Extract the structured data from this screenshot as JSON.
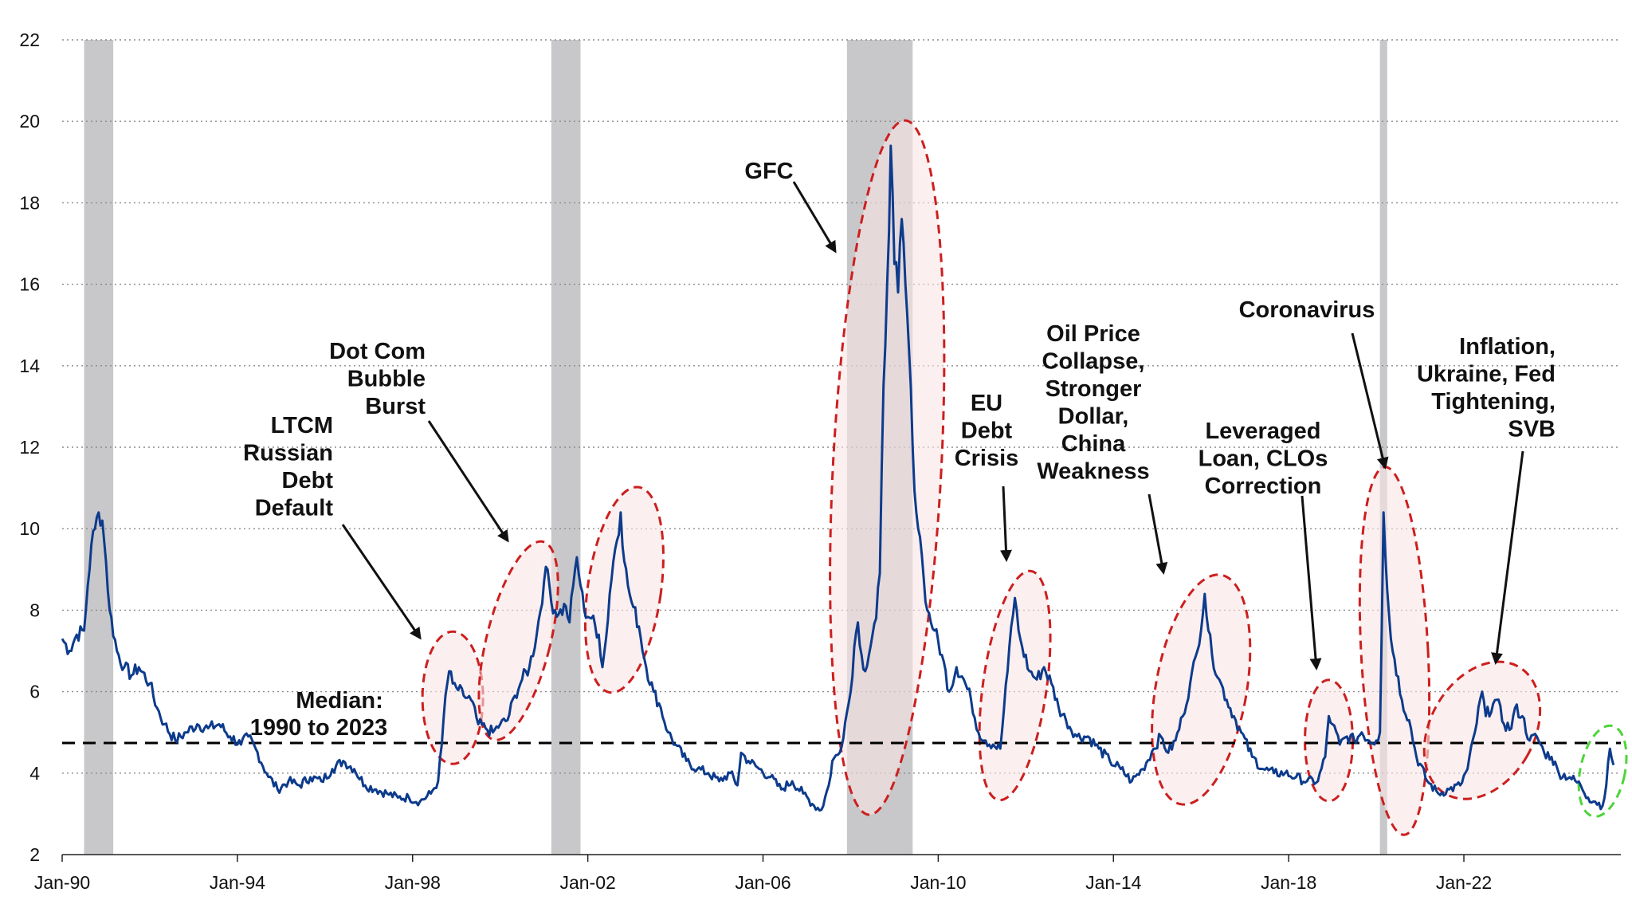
{
  "chart_data": {
    "type": "line",
    "title": "",
    "xlabel": "",
    "ylabel": "",
    "ylim": [
      2,
      22
    ],
    "xlim": [
      "1990-01",
      "2025-08"
    ],
    "grid": "horizontal dotted",
    "legend": "none",
    "y_ticks": [
      "2",
      "4",
      "6",
      "8",
      "10",
      "12",
      "14",
      "16",
      "18",
      "20",
      "22"
    ],
    "x_ticks": [
      "Jan-90",
      "Jan-94",
      "Jan-98",
      "Jan-02",
      "Jan-06",
      "Jan-10",
      "Jan-14",
      "Jan-18",
      "Jan-22"
    ],
    "colors": {
      "series": "#0d3b8c",
      "recession": "#c8c8ca",
      "median": "#000000",
      "highlight": "#cc1f1f",
      "highlight_fill": "#f9e4e4",
      "current": "#4ed43a"
    },
    "recessions": [
      {
        "start": "1990-07",
        "end": "1991-03"
      },
      {
        "start": "2001-03",
        "end": "2001-11"
      },
      {
        "start": "2007-12",
        "end": "2009-06"
      },
      {
        "start": "2020-02",
        "end": "2020-04"
      }
    ],
    "median": {
      "value": 4.74,
      "label_line1": "Median:",
      "label_line2": "1990 to 2023"
    },
    "series": [
      {
        "points": [
          [
            "1990-01",
            7.3
          ],
          [
            "1990-03",
            7.0
          ],
          [
            "1990-05",
            7.4
          ],
          [
            "1990-07",
            7.5
          ],
          [
            "1990-08",
            8.6
          ],
          [
            "1990-09",
            9.6
          ],
          [
            "1990-10",
            10.0
          ],
          [
            "1990-11",
            10.4
          ],
          [
            "1990-12",
            10.2
          ],
          [
            "1991-01",
            9.2
          ],
          [
            "1991-02",
            8.0
          ],
          [
            "1991-04",
            7.0
          ],
          [
            "1991-06",
            6.6
          ],
          [
            "1991-08",
            6.4
          ],
          [
            "1991-10",
            6.6
          ],
          [
            "1992-01",
            6.2
          ],
          [
            "1992-03",
            5.6
          ],
          [
            "1992-05",
            5.2
          ],
          [
            "1992-08",
            4.8
          ],
          [
            "1992-11",
            5.0
          ],
          [
            "1993-02",
            5.2
          ],
          [
            "1993-05",
            5.1
          ],
          [
            "1993-08",
            5.2
          ],
          [
            "1993-11",
            4.9
          ],
          [
            "1994-02",
            4.7
          ],
          [
            "1994-04",
            4.9
          ],
          [
            "1994-06",
            4.6
          ],
          [
            "1994-09",
            4.0
          ],
          [
            "1994-12",
            3.6
          ],
          [
            "1995-03",
            3.8
          ],
          [
            "1995-06",
            3.7
          ],
          [
            "1995-09",
            3.9
          ],
          [
            "1995-12",
            3.8
          ],
          [
            "1996-03",
            4.1
          ],
          [
            "1996-06",
            4.3
          ],
          [
            "1996-09",
            4.1
          ],
          [
            "1996-12",
            3.7
          ],
          [
            "1997-03",
            3.6
          ],
          [
            "1997-06",
            3.5
          ],
          [
            "1997-09",
            3.4
          ],
          [
            "1997-12",
            3.4
          ],
          [
            "1998-03",
            3.3
          ],
          [
            "1998-06",
            3.5
          ],
          [
            "1998-08",
            3.8
          ],
          [
            "1998-09",
            4.7
          ],
          [
            "1998-10",
            5.9
          ],
          [
            "1998-11",
            6.5
          ],
          [
            "1998-12",
            6.2
          ],
          [
            "1999-01",
            6.1
          ],
          [
            "1999-03",
            5.9
          ],
          [
            "1999-05",
            5.8
          ],
          [
            "1999-07",
            5.2
          ],
          [
            "1999-09",
            5.1
          ],
          [
            "1999-11",
            5.0
          ],
          [
            "2000-01",
            5.2
          ],
          [
            "2000-03",
            5.3
          ],
          [
            "2000-05",
            5.9
          ],
          [
            "2000-07",
            6.3
          ],
          [
            "2000-09",
            6.6
          ],
          [
            "2000-11",
            7.4
          ],
          [
            "2001-01",
            8.7
          ],
          [
            "2001-02",
            9.0
          ],
          [
            "2001-03",
            8.2
          ],
          [
            "2001-05",
            7.9
          ],
          [
            "2001-07",
            8.1
          ],
          [
            "2001-08",
            7.7
          ],
          [
            "2001-09",
            8.6
          ],
          [
            "2001-10",
            9.3
          ],
          [
            "2001-11",
            8.6
          ],
          [
            "2001-12",
            8.0
          ],
          [
            "2002-02",
            7.8
          ],
          [
            "2002-04",
            7.4
          ],
          [
            "2002-05",
            6.6
          ],
          [
            "2002-06",
            7.3
          ],
          [
            "2002-07",
            8.4
          ],
          [
            "2002-08",
            9.2
          ],
          [
            "2002-10",
            10.4
          ],
          [
            "2002-11",
            9.2
          ],
          [
            "2002-12",
            8.6
          ],
          [
            "2003-01",
            8.2
          ],
          [
            "2003-03",
            7.6
          ],
          [
            "2003-05",
            6.6
          ],
          [
            "2003-07",
            6.0
          ],
          [
            "2003-09",
            5.6
          ],
          [
            "2003-11",
            5.0
          ],
          [
            "2004-01",
            4.7
          ],
          [
            "2004-04",
            4.3
          ],
          [
            "2004-07",
            4.1
          ],
          [
            "2004-10",
            4.0
          ],
          [
            "2005-01",
            3.8
          ],
          [
            "2005-04",
            4.0
          ],
          [
            "2005-06",
            3.7
          ],
          [
            "2005-07",
            4.5
          ],
          [
            "2005-09",
            4.3
          ],
          [
            "2005-12",
            4.1
          ],
          [
            "2006-03",
            3.9
          ],
          [
            "2006-06",
            3.6
          ],
          [
            "2006-09",
            3.8
          ],
          [
            "2006-12",
            3.5
          ],
          [
            "2007-03",
            3.2
          ],
          [
            "2007-05",
            3.1
          ],
          [
            "2007-07",
            3.7
          ],
          [
            "2007-08",
            4.3
          ],
          [
            "2007-10",
            4.5
          ],
          [
            "2007-12",
            5.5
          ],
          [
            "2008-01",
            6.0
          ],
          [
            "2008-02",
            7.1
          ],
          [
            "2008-03",
            7.7
          ],
          [
            "2008-04",
            6.9
          ],
          [
            "2008-05",
            6.5
          ],
          [
            "2008-06",
            6.9
          ],
          [
            "2008-07",
            7.4
          ],
          [
            "2008-08",
            7.8
          ],
          [
            "2008-09",
            8.9
          ],
          [
            "2008-10",
            13.5
          ],
          [
            "2008-11",
            16.0
          ],
          [
            "2008-12",
            19.4
          ],
          [
            "2009-01",
            16.5
          ],
          [
            "2009-02",
            15.8
          ],
          [
            "2009-03",
            17.6
          ],
          [
            "2009-04",
            16.0
          ],
          [
            "2009-05",
            14.4
          ],
          [
            "2009-06",
            12.0
          ],
          [
            "2009-07",
            10.4
          ],
          [
            "2009-08",
            9.8
          ],
          [
            "2009-09",
            8.8
          ],
          [
            "2009-10",
            8.0
          ],
          [
            "2009-12",
            7.5
          ],
          [
            "2010-02",
            6.9
          ],
          [
            "2010-04",
            6.0
          ],
          [
            "2010-06",
            6.6
          ],
          [
            "2010-08",
            6.3
          ],
          [
            "2010-10",
            5.8
          ],
          [
            "2010-12",
            5.0
          ],
          [
            "2011-02",
            4.8
          ],
          [
            "2011-04",
            4.7
          ],
          [
            "2011-06",
            4.6
          ],
          [
            "2011-08",
            6.5
          ],
          [
            "2011-09",
            7.6
          ],
          [
            "2011-10",
            8.3
          ],
          [
            "2011-11",
            7.5
          ],
          [
            "2011-12",
            7.1
          ],
          [
            "2012-02",
            6.5
          ],
          [
            "2012-04",
            6.3
          ],
          [
            "2012-06",
            6.6
          ],
          [
            "2012-08",
            6.2
          ],
          [
            "2012-10",
            5.6
          ],
          [
            "2012-12",
            5.3
          ],
          [
            "2013-03",
            4.9
          ],
          [
            "2013-06",
            4.9
          ],
          [
            "2013-09",
            4.6
          ],
          [
            "2013-12",
            4.3
          ],
          [
            "2014-03",
            4.1
          ],
          [
            "2014-06",
            3.8
          ],
          [
            "2014-09",
            4.1
          ],
          [
            "2014-12",
            4.6
          ],
          [
            "2015-02",
            4.9
          ],
          [
            "2015-04",
            4.5
          ],
          [
            "2015-06",
            4.8
          ],
          [
            "2015-08",
            5.4
          ],
          [
            "2015-10",
            6.2
          ],
          [
            "2015-12",
            7.0
          ],
          [
            "2016-02",
            8.4
          ],
          [
            "2016-03",
            7.5
          ],
          [
            "2016-04",
            6.9
          ],
          [
            "2016-06",
            6.3
          ],
          [
            "2016-08",
            5.8
          ],
          [
            "2016-10",
            5.4
          ],
          [
            "2016-12",
            5.0
          ],
          [
            "2017-03",
            4.4
          ],
          [
            "2017-06",
            4.1
          ],
          [
            "2017-09",
            4.0
          ],
          [
            "2017-12",
            4.0
          ],
          [
            "2018-03",
            3.9
          ],
          [
            "2018-06",
            3.8
          ],
          [
            "2018-09",
            3.8
          ],
          [
            "2018-11",
            4.4
          ],
          [
            "2018-12",
            5.4
          ],
          [
            "2019-01",
            5.2
          ],
          [
            "2019-03",
            4.7
          ],
          [
            "2019-05",
            4.9
          ],
          [
            "2019-07",
            4.8
          ],
          [
            "2019-09",
            5.0
          ],
          [
            "2019-11",
            4.8
          ],
          [
            "2020-01",
            4.8
          ],
          [
            "2020-02",
            5.0
          ],
          [
            "2020-03",
            10.4
          ],
          [
            "2020-04",
            8.5
          ],
          [
            "2020-05",
            7.3
          ],
          [
            "2020-06",
            6.8
          ],
          [
            "2020-08",
            5.8
          ],
          [
            "2020-10",
            5.3
          ],
          [
            "2020-12",
            4.4
          ],
          [
            "2021-03",
            3.8
          ],
          [
            "2021-06",
            3.5
          ],
          [
            "2021-09",
            3.6
          ],
          [
            "2021-12",
            3.7
          ],
          [
            "2022-02",
            4.1
          ],
          [
            "2022-04",
            5.0
          ],
          [
            "2022-06",
            6.0
          ],
          [
            "2022-07",
            5.4
          ],
          [
            "2022-09",
            5.7
          ],
          [
            "2022-10",
            5.8
          ],
          [
            "2022-12",
            5.2
          ],
          [
            "2023-02",
            5.1
          ],
          [
            "2023-03",
            5.6
          ],
          [
            "2023-05",
            5.4
          ],
          [
            "2023-07",
            4.8
          ],
          [
            "2023-09",
            4.9
          ],
          [
            "2023-11",
            4.5
          ],
          [
            "2024-01",
            4.4
          ],
          [
            "2024-03",
            4.0
          ],
          [
            "2024-06",
            3.9
          ],
          [
            "2024-09",
            3.7
          ],
          [
            "2024-11",
            3.4
          ],
          [
            "2025-01",
            3.3
          ],
          [
            "2025-03",
            3.2
          ],
          [
            "2025-04",
            3.7
          ],
          [
            "2025-05",
            4.6
          ],
          [
            "2025-06",
            4.2
          ]
        ]
      }
    ],
    "annotations": [
      {
        "id": "ltcm",
        "lines": [
          "LTCM",
          "Russian",
          "Debt",
          "Default"
        ]
      },
      {
        "id": "dotcom",
        "lines": [
          "Dot Com",
          "Bubble",
          "Burst"
        ]
      },
      {
        "id": "gfc",
        "lines": [
          "GFC"
        ]
      },
      {
        "id": "eu",
        "lines": [
          "EU",
          "Debt",
          "Crisis"
        ]
      },
      {
        "id": "oil",
        "lines": [
          "Oil Price",
          "Collapse,",
          "Stronger",
          "Dollar,",
          "China",
          "Weakness"
        ]
      },
      {
        "id": "lev",
        "lines": [
          "Leveraged",
          "Loan, CLOs",
          "Correction"
        ]
      },
      {
        "id": "covid",
        "lines": [
          "Coronavirus"
        ]
      },
      {
        "id": "infl",
        "lines": [
          "Inflation,",
          "Ukraine, Fed",
          "Tightening,",
          "SVB"
        ]
      }
    ]
  }
}
